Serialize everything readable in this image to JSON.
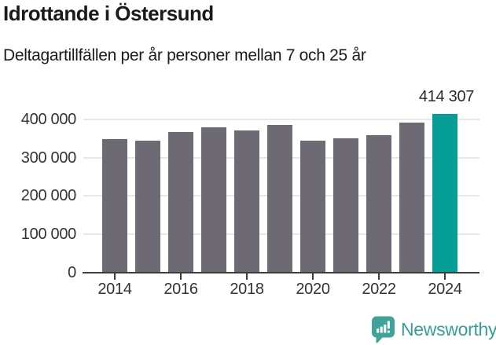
{
  "header": {
    "title": "Idrottande i Östersund",
    "subtitle": "Deltagartillfällen per år personer mellan 7 och 25 år"
  },
  "chart_data": {
    "type": "bar",
    "categories": [
      2014,
      2015,
      2016,
      2017,
      2018,
      2019,
      2020,
      2021,
      2022,
      2023,
      2024
    ],
    "values": [
      349000,
      344000,
      368000,
      379000,
      371000,
      385000,
      344000,
      350000,
      360000,
      391000,
      414307
    ],
    "title": "Idrottande i Östersund",
    "subtitle": "Deltagartillfällen per år personer mellan 7 och 25 år",
    "xlabel": "",
    "ylabel": "",
    "ylim": [
      0,
      440000
    ],
    "grid": true,
    "legend": "none",
    "highlight_category": 2024,
    "annotation": {
      "category": 2024,
      "text": "414 307"
    },
    "y_ticks": [
      {
        "value": 0,
        "label": "0"
      },
      {
        "value": 100000,
        "label": "100 000"
      },
      {
        "value": 200000,
        "label": "200 000"
      },
      {
        "value": 300000,
        "label": "300 000"
      },
      {
        "value": 400000,
        "label": "400 000"
      }
    ],
    "x_ticks": [
      {
        "value": 2014,
        "label": "2014"
      },
      {
        "value": 2016,
        "label": "2016"
      },
      {
        "value": 2018,
        "label": "2018"
      },
      {
        "value": 2020,
        "label": "2020"
      },
      {
        "value": 2022,
        "label": "2022"
      },
      {
        "value": 2024,
        "label": "2024"
      }
    ],
    "colors": {
      "bar": "#6e6a73",
      "highlight": "#089e98",
      "gridline": "#e8e8e8",
      "axis": "#3d3d3d",
      "tick_text": "#333333",
      "value_label_text": "#2b2b2b"
    }
  },
  "footer": {
    "brand": "Newsworthy",
    "logo_icon": "bar-chart-speech-bubble-icon",
    "logo_color": "#40a39a",
    "text_color": "#379e96"
  }
}
